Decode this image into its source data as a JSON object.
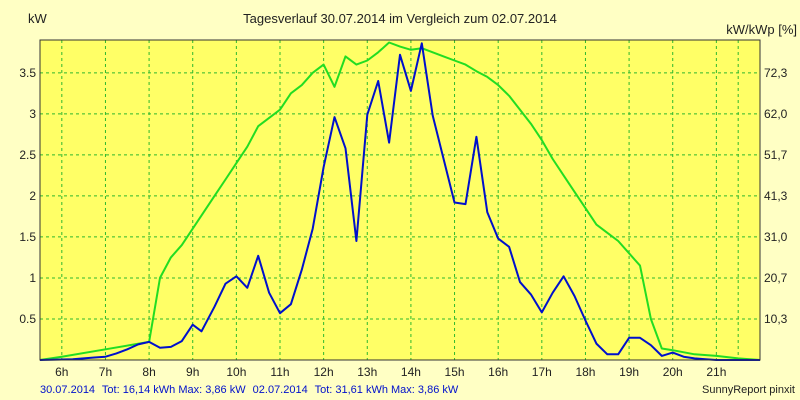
{
  "chart_data": {
    "type": "line",
    "title": "Tagesverlauf 30.07.2014 im Vergleich zum 02.07.2014",
    "ylabel_left": "kW",
    "ylabel_right": "kW/kWp [%]",
    "xlim": [
      5.5,
      22.0
    ],
    "ylim": [
      0,
      3.9
    ],
    "grid": true,
    "x_ticks": [
      6,
      7,
      8,
      9,
      10,
      11,
      12,
      13,
      14,
      15,
      16,
      17,
      18,
      19,
      20,
      21
    ],
    "x_tick_labels": [
      "6h",
      "7h",
      "8h",
      "9h",
      "10h",
      "11h",
      "12h",
      "13h",
      "14h",
      "15h",
      "16h",
      "17h",
      "18h",
      "19h",
      "20h",
      "21h"
    ],
    "y_ticks": [
      0.5,
      1,
      1.5,
      2,
      2.5,
      3,
      3.5
    ],
    "y_tick_labels": [
      "0.5",
      "1",
      "1.5",
      "2",
      "2.5",
      "3",
      "3.5"
    ],
    "y_right_tick_labels": [
      "10,3",
      "20,7",
      "31,0",
      "41,3",
      "51,7",
      "62,0",
      "72,3"
    ],
    "series": [
      {
        "name": "30.07.2014",
        "color": "#0010cc",
        "points": [
          [
            5.5,
            0
          ],
          [
            6.25,
            0.01
          ],
          [
            6.75,
            0.03
          ],
          [
            7.0,
            0.04
          ],
          [
            7.25,
            0.08
          ],
          [
            7.5,
            0.13
          ],
          [
            7.75,
            0.19
          ],
          [
            8.0,
            0.22
          ],
          [
            8.25,
            0.15
          ],
          [
            8.5,
            0.16
          ],
          [
            8.75,
            0.23
          ],
          [
            9.0,
            0.43
          ],
          [
            9.2,
            0.35
          ],
          [
            9.5,
            0.65
          ],
          [
            9.75,
            0.93
          ],
          [
            10.0,
            1.02
          ],
          [
            10.25,
            0.88
          ],
          [
            10.5,
            1.27
          ],
          [
            10.75,
            0.82
          ],
          [
            11.0,
            0.57
          ],
          [
            11.25,
            0.68
          ],
          [
            11.5,
            1.1
          ],
          [
            11.75,
            1.6
          ],
          [
            12.0,
            2.35
          ],
          [
            12.25,
            2.96
          ],
          [
            12.5,
            2.58
          ],
          [
            12.75,
            1.45
          ],
          [
            13.0,
            2.99
          ],
          [
            13.25,
            3.4
          ],
          [
            13.5,
            2.65
          ],
          [
            13.75,
            3.72
          ],
          [
            14.0,
            3.28
          ],
          [
            14.25,
            3.86
          ],
          [
            14.5,
            2.98
          ],
          [
            14.75,
            2.45
          ],
          [
            15.0,
            1.92
          ],
          [
            15.25,
            1.9
          ],
          [
            15.5,
            2.72
          ],
          [
            15.75,
            1.8
          ],
          [
            16.0,
            1.48
          ],
          [
            16.25,
            1.38
          ],
          [
            16.5,
            0.95
          ],
          [
            16.75,
            0.8
          ],
          [
            17.0,
            0.58
          ],
          [
            17.25,
            0.82
          ],
          [
            17.5,
            1.02
          ],
          [
            17.75,
            0.78
          ],
          [
            18.0,
            0.48
          ],
          [
            18.25,
            0.2
          ],
          [
            18.5,
            0.07
          ],
          [
            18.75,
            0.07
          ],
          [
            19.0,
            0.27
          ],
          [
            19.25,
            0.27
          ],
          [
            19.5,
            0.18
          ],
          [
            19.75,
            0.05
          ],
          [
            20.0,
            0.09
          ],
          [
            20.25,
            0.04
          ],
          [
            20.5,
            0.02
          ],
          [
            20.75,
            0.01
          ],
          [
            21.0,
            0
          ],
          [
            22.0,
            0
          ]
        ]
      },
      {
        "name": "02.07.2014",
        "color": "#22dd22",
        "points": [
          [
            5.5,
            0
          ],
          [
            6.0,
            0.04
          ],
          [
            7.0,
            0.13
          ],
          [
            8.0,
            0.22
          ],
          [
            8.25,
            1.0
          ],
          [
            8.5,
            1.25
          ],
          [
            8.75,
            1.4
          ],
          [
            9.0,
            1.6
          ],
          [
            9.25,
            1.8
          ],
          [
            9.5,
            2.0
          ],
          [
            9.75,
            2.2
          ],
          [
            10.0,
            2.4
          ],
          [
            10.25,
            2.6
          ],
          [
            10.5,
            2.85
          ],
          [
            10.75,
            2.95
          ],
          [
            11.0,
            3.05
          ],
          [
            11.25,
            3.25
          ],
          [
            11.5,
            3.35
          ],
          [
            11.75,
            3.5
          ],
          [
            12.0,
            3.6
          ],
          [
            12.25,
            3.33
          ],
          [
            12.5,
            3.7
          ],
          [
            12.75,
            3.6
          ],
          [
            13.0,
            3.65
          ],
          [
            13.25,
            3.75
          ],
          [
            13.5,
            3.87
          ],
          [
            13.75,
            3.82
          ],
          [
            14.0,
            3.78
          ],
          [
            14.25,
            3.8
          ],
          [
            14.5,
            3.75
          ],
          [
            14.75,
            3.7
          ],
          [
            15.0,
            3.65
          ],
          [
            15.25,
            3.6
          ],
          [
            15.5,
            3.52
          ],
          [
            15.75,
            3.45
          ],
          [
            16.0,
            3.35
          ],
          [
            16.25,
            3.22
          ],
          [
            16.5,
            3.05
          ],
          [
            16.75,
            2.88
          ],
          [
            17.0,
            2.68
          ],
          [
            17.25,
            2.45
          ],
          [
            17.5,
            2.25
          ],
          [
            17.75,
            2.05
          ],
          [
            18.0,
            1.85
          ],
          [
            18.25,
            1.65
          ],
          [
            18.5,
            1.55
          ],
          [
            18.75,
            1.45
          ],
          [
            19.0,
            1.3
          ],
          [
            19.25,
            1.15
          ],
          [
            19.5,
            0.5
          ],
          [
            19.75,
            0.14
          ],
          [
            20.0,
            0.12
          ],
          [
            20.5,
            0.07
          ],
          [
            21.0,
            0.05
          ],
          [
            21.5,
            0.02
          ],
          [
            22.0,
            0
          ]
        ]
      }
    ],
    "legend": {
      "line1_date": "30.07.2014",
      "line1_stats": "Tot: 16,14 kWh Max: 3,86 kW",
      "line2_date": "02.07.2014",
      "line2_stats": "Tot: 31,61 kWh Max: 3,86 kW"
    },
    "footer_right": "SunnyReport pinxit",
    "colors": {
      "background": "#ffffc4",
      "plot_background": "#ffff66",
      "grid": "#2eb82e",
      "series1": "#0010cc",
      "series2": "#22dd22"
    }
  }
}
